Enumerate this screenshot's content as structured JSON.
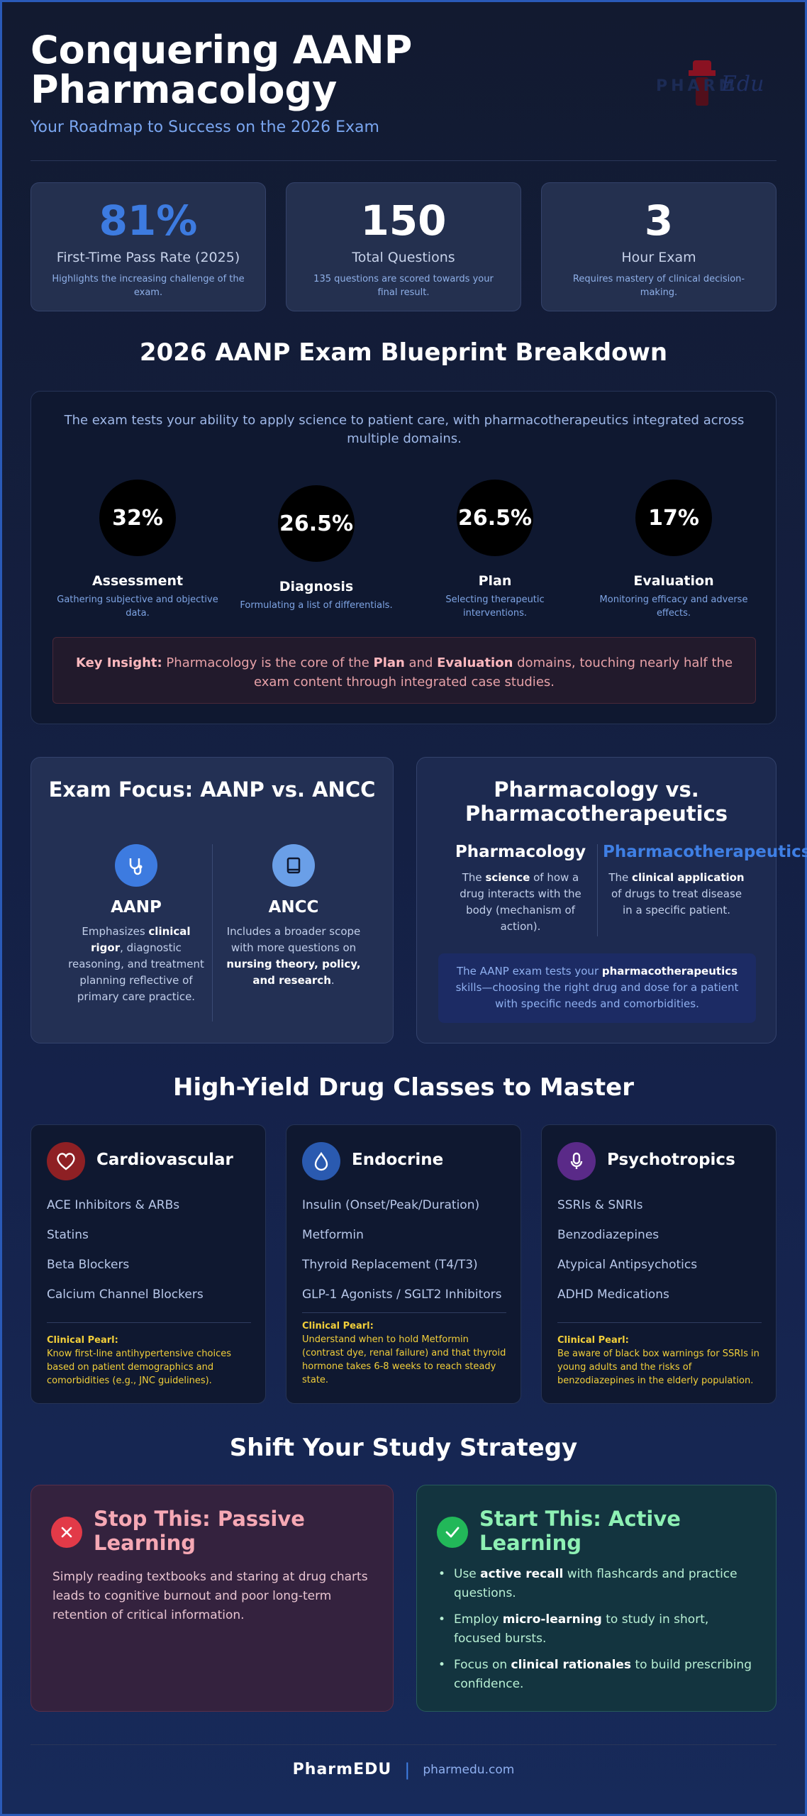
{
  "header": {
    "title": "Conquering AANP Pharmacology",
    "subtitle": "Your Roadmap to Success on the 2026 Exam",
    "logo_text": "PHARM",
    "logo_edu": "Edu"
  },
  "stats": [
    {
      "value": "81%",
      "label": "First-Time Pass Rate (2025)",
      "desc": "Highlights the increasing challenge of the exam."
    },
    {
      "value": "150",
      "label": "Total Questions",
      "desc": "135 questions are scored towards your final result."
    },
    {
      "value": "3",
      "label": "Hour Exam",
      "desc": "Requires mastery of clinical decision-making."
    }
  ],
  "blueprint": {
    "heading": "2026 AANP Exam Blueprint Breakdown",
    "intro": "The exam tests your ability to apply science to patient care, with pharmacotherapeutics integrated across multiple domains.",
    "domains": [
      {
        "pct": "32%",
        "name": "Assessment",
        "desc": "Gathering subjective and objective data."
      },
      {
        "pct": "26.5%",
        "name": "Diagnosis",
        "desc": "Formulating a list of differentials."
      },
      {
        "pct": "26.5%",
        "name": "Plan",
        "desc": "Selecting therapeutic interventions."
      },
      {
        "pct": "17%",
        "name": "Evaluation",
        "desc": "Monitoring efficacy and adverse effects."
      }
    ],
    "insight": {
      "label": "Key Insight:",
      "t1": " Pharmacology is the core of the ",
      "plan": "Plan",
      "t2": " and ",
      "evaluation": "Evaluation",
      "t3": " domains, touching nearly half the exam content through integrated case studies."
    }
  },
  "focus": {
    "title": "Exam Focus: AANP vs. ANCC",
    "aanp": {
      "name": "AANP",
      "t1": "Emphasizes ",
      "b1": "clinical rigor",
      "t2": ", diagnostic reasoning, and treatment planning reflective of primary care practice."
    },
    "ancc": {
      "name": "ANCC",
      "t1": "Includes a broader scope with more questions on ",
      "b1": "nursing theory, policy, and research",
      "t2": "."
    }
  },
  "pharma": {
    "title": "Pharmacology vs. Pharmacotherapeutics",
    "pharmacology": {
      "name": "Pharmacology",
      "t1": "The ",
      "b1": "science",
      "t2": " of how a drug interacts with the body (mechanism of action)."
    },
    "pharmacotherapeutics": {
      "name": "Pharmacotherapeutics",
      "t1": "The ",
      "b1": "clinical application",
      "t2": " of drugs to treat disease in a specific patient."
    },
    "note": {
      "t1": "The AANP exam tests your ",
      "b1": "pharmacotherapeutics",
      "t2": " skills—choosing the right drug and dose for a patient with specific needs and comorbidities."
    }
  },
  "drugs": {
    "heading": "High-Yield Drug Classes to Master",
    "pearl_label": "Clinical Pearl:",
    "classes": [
      {
        "title": "Cardiovascular",
        "icon": "heart-icon",
        "color": "#8e2024",
        "items": [
          "ACE Inhibitors & ARBs",
          "Statins",
          "Beta Blockers",
          "Calcium Channel Blockers"
        ],
        "pearl": "Know first-line antihypertensive choices based on patient demographics and comorbidities (e.g., JNC guidelines)."
      },
      {
        "title": "Endocrine",
        "icon": "droplet-icon",
        "color": "#2a5ab0",
        "items": [
          "Insulin (Onset/Peak/Duration)",
          "Metformin",
          "Thyroid Replacement (T4/T3)",
          "GLP-1 Agonists / SGLT2 Inhibitors"
        ],
        "pearl": "Understand when to hold Metformin (contrast dye, renal failure) and that thyroid hormone takes 6-8 weeks to reach steady state."
      },
      {
        "title": "Psychotropics",
        "icon": "brain-icon",
        "color": "#5a2a88",
        "items": [
          "SSRIs & SNRIs",
          "Benzodiazepines",
          "Atypical Antipsychotics",
          "ADHD Medications"
        ],
        "pearl": "Be aware of black box warnings for SSRIs in young adults and the risks of benzodiazepines in the elderly population."
      }
    ]
  },
  "strategy": {
    "heading": "Shift Your Study Strategy",
    "stop": {
      "title": "Stop This: Passive Learning",
      "body": "Simply reading textbooks and staring at drug charts leads to cognitive burnout and poor long-term retention of critical information."
    },
    "start": {
      "title": "Start This: Active Learning",
      "items": [
        {
          "t1": "Use ",
          "b": "active recall",
          "t2": " with flashcards and practice questions."
        },
        {
          "t1": "Employ ",
          "b": "micro-learning",
          "t2": " to study in short, focused bursts."
        },
        {
          "t1": "Focus on ",
          "b": "clinical rationales",
          "t2": " to build prescribing confidence."
        }
      ]
    }
  },
  "footer": {
    "brand": "PharmEDU",
    "sep": "|",
    "url": "pharmedu.com"
  },
  "colors": {
    "accent": "#3d7be0",
    "pearl": "#f2cf3a",
    "stop": "#e23a48",
    "start": "#22b859"
  }
}
